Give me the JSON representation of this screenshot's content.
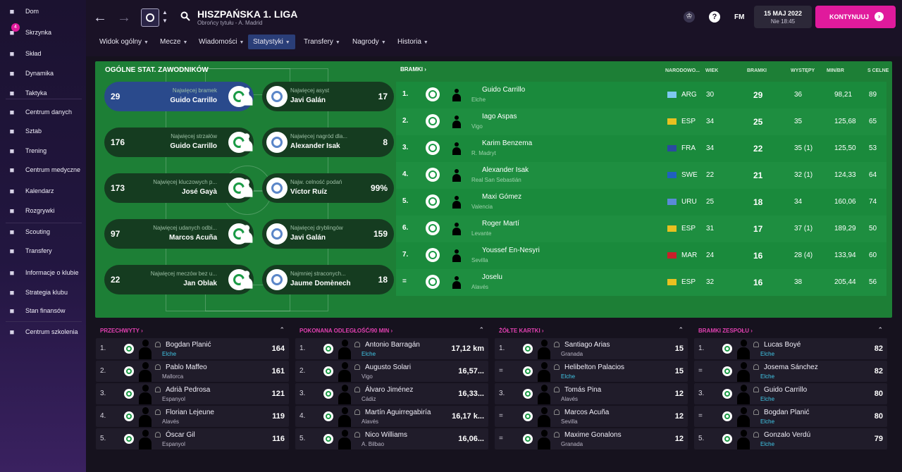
{
  "sidebar": {
    "items": [
      {
        "label": "Dom",
        "icon": "home-icon"
      },
      {
        "label": "Skrzynka",
        "icon": "inbox-icon",
        "badge": "4"
      },
      {
        "label": "Skład",
        "icon": "shirt-icon"
      },
      {
        "label": "Dynamika",
        "icon": "dynamics-icon"
      },
      {
        "label": "Taktyka",
        "icon": "tactics-icon"
      },
      {
        "label": "Centrum danych",
        "icon": "data-hub-icon"
      },
      {
        "label": "Sztab",
        "icon": "staff-icon"
      },
      {
        "label": "Trening",
        "icon": "training-icon"
      },
      {
        "label": "Centrum medyczne",
        "icon": "medical-icon"
      },
      {
        "label": "Kalendarz",
        "icon": "calendar-icon"
      },
      {
        "label": "Rozgrywki",
        "icon": "trophy-icon"
      },
      {
        "label": "Scouting",
        "icon": "search-icon"
      },
      {
        "label": "Transfery",
        "icon": "transfer-icon"
      },
      {
        "label": "Informacje o klubie",
        "icon": "shield-icon"
      },
      {
        "label": "Strategia klubu",
        "icon": "briefcase-icon"
      },
      {
        "label": "Stan finansów",
        "icon": "finance-icon"
      },
      {
        "label": "Centrum szkolenia",
        "icon": "academy-icon"
      }
    ]
  },
  "header": {
    "title": "HISZPAŃSKA 1. LIGA",
    "subtitle": "Obrońcy tytułu - A. Madrid",
    "date": "15 MAJ 2022",
    "day_time": "Nie 18:45",
    "continue_label": "KONTYNUUJ",
    "fm_label": "FM"
  },
  "tabs": [
    {
      "label": "Widok ogólny",
      "active": false
    },
    {
      "label": "Mecze",
      "active": false
    },
    {
      "label": "Wiadomości",
      "active": false
    },
    {
      "label": "Statystyki",
      "active": true
    },
    {
      "label": "Transfery",
      "active": false
    },
    {
      "label": "Nagrody",
      "active": false
    },
    {
      "label": "Historia",
      "active": false
    }
  ],
  "overview": {
    "title": "OGÓLNE STAT. ZAWODNIKÓW",
    "rows": [
      {
        "left": {
          "value": "29",
          "caption": "Najwięcej bramek",
          "name": "Guido Carrillo"
        },
        "right": {
          "value": "17",
          "caption": "Najwięcej asyst",
          "name": "Javi Galán"
        }
      },
      {
        "left": {
          "value": "176",
          "caption": "Najwięcej strzałów",
          "name": "Guido Carrillo"
        },
        "right": {
          "value": "8",
          "caption": "Najwięcej nagród dla...",
          "name": "Alexander Isak"
        }
      },
      {
        "left": {
          "value": "173",
          "caption": "Najwięcej kluczowych p...",
          "name": "José Gayà"
        },
        "right": {
          "value": "99%",
          "caption": "Najw. celność podań",
          "name": "Víctor Ruíz"
        }
      },
      {
        "left": {
          "value": "97",
          "caption": "Najwięcej udanych odbi...",
          "name": "Marcos Acuña"
        },
        "right": {
          "value": "159",
          "caption": "Najwięcej dryblingów",
          "name": "Javi Galán"
        }
      },
      {
        "left": {
          "value": "22",
          "caption": "Najwięcej meczów bez u...",
          "name": "Jan Oblak"
        },
        "right": {
          "value": "18",
          "caption": "Najmniej straconych...",
          "name": "Jaume Domènech"
        }
      }
    ]
  },
  "goals": {
    "title": "BRAMKI",
    "columns": [
      "NARODOWO...",
      "WIEK",
      "BRAMKI",
      "WYSTĘPY",
      "MIN/BR",
      "S CELNE"
    ],
    "rows": [
      {
        "rank": "1.",
        "name": "Guido Carrillo",
        "club": "Elche",
        "nat": "ARG",
        "age": "30",
        "goals": "29",
        "apps": "36",
        "min": "98,21",
        "shots": "89"
      },
      {
        "rank": "2.",
        "name": "Iago Aspas",
        "club": "Vigo",
        "nat": "ESP",
        "age": "34",
        "goals": "25",
        "apps": "35",
        "min": "125,68",
        "shots": "65"
      },
      {
        "rank": "3.",
        "name": "Karim Benzema",
        "club": "R. Madryt",
        "nat": "FRA",
        "age": "34",
        "goals": "22",
        "apps": "35 (1)",
        "min": "125,50",
        "shots": "53"
      },
      {
        "rank": "4.",
        "name": "Alexander Isak",
        "club": "Real San Sebastián",
        "nat": "SWE",
        "age": "22",
        "goals": "21",
        "apps": "32 (1)",
        "min": "124,33",
        "shots": "64"
      },
      {
        "rank": "5.",
        "name": "Maxi Gómez",
        "club": "Valencia",
        "nat": "URU",
        "age": "25",
        "goals": "18",
        "apps": "34",
        "min": "160,06",
        "shots": "74"
      },
      {
        "rank": "6.",
        "name": "Roger Martí",
        "club": "Levante",
        "nat": "ESP",
        "age": "31",
        "goals": "17",
        "apps": "37 (1)",
        "min": "189,29",
        "shots": "50"
      },
      {
        "rank": "7.",
        "name": "Youssef En-Nesyri",
        "club": "Sevilla",
        "nat": "MAR",
        "age": "24",
        "goals": "16",
        "apps": "28 (4)",
        "min": "133,94",
        "shots": "60"
      },
      {
        "rank": "=",
        "name": "Joselu",
        "club": "Alavés",
        "nat": "ESP",
        "age": "32",
        "goals": "16",
        "apps": "38",
        "min": "205,44",
        "shots": "56"
      }
    ]
  },
  "panels": [
    {
      "title": "PRZECHWYTY",
      "rows": [
        {
          "rank": "1.",
          "name": "Bogdan Planić",
          "club": "Elche",
          "value": "164"
        },
        {
          "rank": "2.",
          "name": "Pablo Maffeo",
          "club": "Mallorca",
          "value": "161"
        },
        {
          "rank": "3.",
          "name": "Adrià Pedrosa",
          "club": "Espanyol",
          "value": "121"
        },
        {
          "rank": "4.",
          "name": "Florian Lejeune",
          "club": "Alavés",
          "value": "119"
        },
        {
          "rank": "5.",
          "name": "Óscar Gil",
          "club": "Espanyol",
          "value": "116"
        }
      ]
    },
    {
      "title": "POKONANA ODLEGŁOŚĆ/90 MIN",
      "rows": [
        {
          "rank": "1.",
          "name": "Antonio Barragán",
          "club": "Elche",
          "value": "17,12 km"
        },
        {
          "rank": "2.",
          "name": "Augusto Solari",
          "club": "Vigo",
          "value": "16,57..."
        },
        {
          "rank": "3.",
          "name": "Álvaro Jiménez",
          "club": "Cádiz",
          "value": "16,33..."
        },
        {
          "rank": "4.",
          "name": "Martín Aguirregabiría",
          "club": "Alavés",
          "value": "16,17 k..."
        },
        {
          "rank": "5.",
          "name": "Nico Williams",
          "club": "A. Bilbao",
          "value": "16,06..."
        }
      ]
    },
    {
      "title": "ŻÓŁTE KARTKI",
      "rows": [
        {
          "rank": "1.",
          "name": "Santiago Arias",
          "club": "Granada",
          "value": "15"
        },
        {
          "rank": "=",
          "name": "Helibelton Palacios",
          "club": "Elche",
          "value": "15"
        },
        {
          "rank": "3.",
          "name": "Tomás Pina",
          "club": "Alavés",
          "value": "12"
        },
        {
          "rank": "=",
          "name": "Marcos Acuña",
          "club": "Sevilla",
          "value": "12"
        },
        {
          "rank": "=",
          "name": "Maxime Gonalons",
          "club": "Granada",
          "value": "12"
        }
      ]
    },
    {
      "title": "BRAMKI ZESPOŁU",
      "rows": [
        {
          "rank": "1.",
          "name": "Lucas Boyé",
          "club": "Elche",
          "value": "82"
        },
        {
          "rank": "=",
          "name": "Josema Sánchez",
          "club": "Elche",
          "value": "82"
        },
        {
          "rank": "3.",
          "name": "Guido Carrillo",
          "club": "Elche",
          "value": "80"
        },
        {
          "rank": "=",
          "name": "Bogdan Planić",
          "club": "Elche",
          "value": "80"
        },
        {
          "rank": "5.",
          "name": "Gonzalo Verdú",
          "club": "Elche",
          "value": "79"
        }
      ]
    }
  ],
  "colors": {
    "accent": "#e01a9c",
    "green": "#1d7f36",
    "highlight": "#2a4a8c",
    "panel_title": "#e040b0"
  }
}
